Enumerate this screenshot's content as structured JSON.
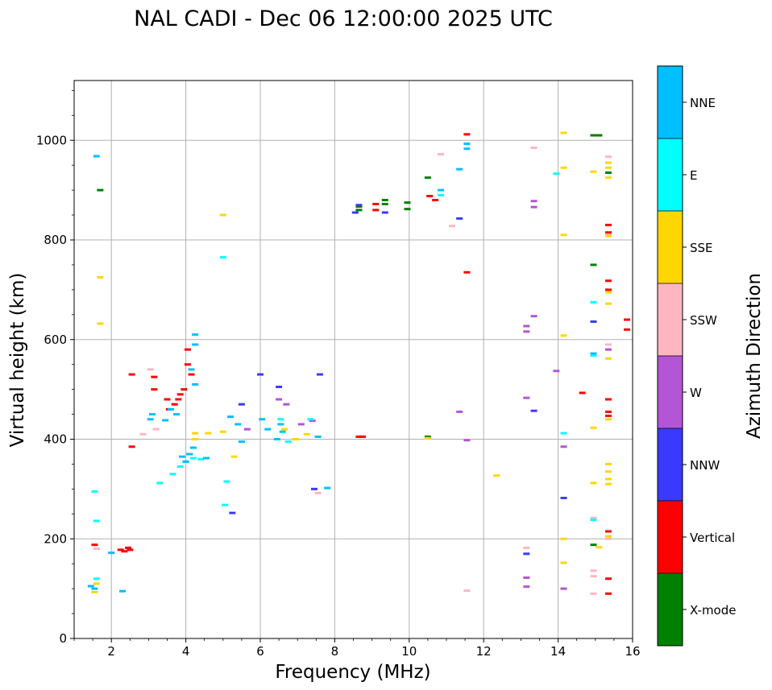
{
  "chart_data": {
    "type": "scatter",
    "title": "NAL CADI - Dec 06 12:00:00 2025 UTC",
    "xlabel": "Frequency (MHz)",
    "ylabel": "Virtual height (km)",
    "xlim": [
      1,
      16
    ],
    "ylim": [
      0,
      1120
    ],
    "xticks": [
      2,
      4,
      6,
      8,
      10,
      12,
      14,
      16
    ],
    "yticks": [
      0,
      200,
      400,
      600,
      800,
      1000
    ],
    "grid": true,
    "colorbar": {
      "label": "Azimuth Direction",
      "categories": [
        {
          "name": "X-mode",
          "color": "#008000"
        },
        {
          "name": "Vertical",
          "color": "#ff0000"
        },
        {
          "name": "NNW",
          "color": "#3a3aff"
        },
        {
          "name": "W",
          "color": "#b455d6"
        },
        {
          "name": "SSW",
          "color": "#ffb6c1"
        },
        {
          "name": "SSE",
          "color": "#ffd700"
        },
        {
          "name": "E",
          "color": "#00ffff"
        },
        {
          "name": "NNE",
          "color": "#00bfff"
        }
      ]
    },
    "series": [
      {
        "name": "X-mode",
        "points": [
          [
            8.65,
            867
          ],
          [
            8.65,
            860
          ],
          [
            9.35,
            880
          ],
          [
            9.35,
            872
          ],
          [
            9.95,
            875
          ],
          [
            9.95,
            862
          ],
          [
            10.5,
            925
          ],
          [
            10.5,
            405
          ],
          [
            14.95,
            1010
          ],
          [
            15.1,
            1010
          ],
          [
            14.95,
            750
          ],
          [
            14.95,
            188
          ],
          [
            15.35,
            935
          ],
          [
            1.7,
            900
          ]
        ]
      },
      {
        "name": "Vertical",
        "points": [
          [
            1.55,
            188
          ],
          [
            2.25,
            178
          ],
          [
            2.35,
            175
          ],
          [
            2.45,
            182
          ],
          [
            2.5,
            178
          ],
          [
            2.55,
            530
          ],
          [
            2.55,
            385
          ],
          [
            3.15,
            525
          ],
          [
            3.15,
            500
          ],
          [
            3.5,
            480
          ],
          [
            3.55,
            460
          ],
          [
            3.7,
            470
          ],
          [
            3.8,
            480
          ],
          [
            3.85,
            490
          ],
          [
            3.95,
            500
          ],
          [
            4.05,
            580
          ],
          [
            4.05,
            550
          ],
          [
            4.15,
            530
          ],
          [
            8.65,
            405
          ],
          [
            8.75,
            405
          ],
          [
            9.1,
            872
          ],
          [
            9.1,
            860
          ],
          [
            10.55,
            888
          ],
          [
            10.7,
            880
          ],
          [
            11.55,
            735
          ],
          [
            11.55,
            1012
          ],
          [
            14.65,
            493
          ],
          [
            15.35,
            830
          ],
          [
            15.35,
            815
          ],
          [
            15.35,
            718
          ],
          [
            15.35,
            700
          ],
          [
            15.35,
            480
          ],
          [
            15.35,
            455
          ],
          [
            15.35,
            447
          ],
          [
            15.35,
            215
          ],
          [
            15.35,
            120
          ],
          [
            15.35,
            90
          ],
          [
            15.85,
            640
          ],
          [
            15.85,
            620
          ]
        ]
      },
      {
        "name": "NNW",
        "points": [
          [
            8.55,
            855
          ],
          [
            8.65,
            870
          ],
          [
            9.35,
            855
          ],
          [
            11.35,
            843
          ],
          [
            13.15,
            170
          ],
          [
            13.35,
            457
          ],
          [
            14.15,
            282
          ],
          [
            14.95,
            636
          ],
          [
            6.0,
            530
          ],
          [
            6.5,
            505
          ],
          [
            5.5,
            470
          ],
          [
            7.6,
            530
          ],
          [
            7.45,
            300
          ],
          [
            5.25,
            252
          ]
        ]
      },
      {
        "name": "W",
        "points": [
          [
            13.35,
            878
          ],
          [
            13.35,
            866
          ],
          [
            13.35,
            647
          ],
          [
            13.15,
            627
          ],
          [
            13.15,
            616
          ],
          [
            13.15,
            483
          ],
          [
            13.15,
            122
          ],
          [
            13.15,
            104
          ],
          [
            13.95,
            537
          ],
          [
            14.15,
            385
          ],
          [
            14.15,
            100
          ],
          [
            15.35,
            580
          ],
          [
            11.35,
            455
          ],
          [
            11.55,
            398
          ],
          [
            6.5,
            480
          ],
          [
            6.7,
            470
          ],
          [
            7.1,
            430
          ],
          [
            7.4,
            437
          ],
          [
            5.65,
            420
          ]
        ]
      },
      {
        "name": "SSW",
        "points": [
          [
            13.35,
            985
          ],
          [
            15.35,
            967
          ],
          [
            15.35,
            590
          ],
          [
            14.95,
            242
          ],
          [
            14.95,
            136
          ],
          [
            14.95,
            125
          ],
          [
            14.95,
            90
          ],
          [
            15.35,
            810
          ],
          [
            11.15,
            828
          ],
          [
            10.85,
            972
          ],
          [
            3.05,
            540
          ],
          [
            3.2,
            420
          ],
          [
            2.85,
            410
          ],
          [
            1.6,
            180
          ],
          [
            7.55,
            292
          ],
          [
            11.55,
            96
          ],
          [
            13.15,
            182
          ],
          [
            15.35,
            200
          ]
        ]
      },
      {
        "name": "SSE",
        "points": [
          [
            14.15,
            1015
          ],
          [
            14.15,
            945
          ],
          [
            14.15,
            810
          ],
          [
            14.15,
            608
          ],
          [
            14.15,
            200
          ],
          [
            14.15,
            152
          ],
          [
            14.95,
            937
          ],
          [
            14.95,
            423
          ],
          [
            14.95,
            312
          ],
          [
            15.35,
            955
          ],
          [
            15.35,
            945
          ],
          [
            15.35,
            925
          ],
          [
            15.35,
            808
          ],
          [
            15.35,
            695
          ],
          [
            15.35,
            672
          ],
          [
            15.35,
            562
          ],
          [
            15.35,
            440
          ],
          [
            15.35,
            350
          ],
          [
            15.35,
            335
          ],
          [
            15.35,
            320
          ],
          [
            15.35,
            310
          ],
          [
            15.35,
            205
          ],
          [
            12.35,
            327
          ],
          [
            4.25,
            412
          ],
          [
            4.25,
            400
          ],
          [
            4.6,
            412
          ],
          [
            5.0,
            415
          ],
          [
            5.3,
            365
          ],
          [
            6.65,
            420
          ],
          [
            6.95,
            400
          ],
          [
            7.25,
            410
          ],
          [
            1.6,
            110
          ],
          [
            1.55,
            93
          ],
          [
            5.0,
            850
          ],
          [
            1.7,
            725
          ],
          [
            1.7,
            632
          ],
          [
            10.5,
            402
          ],
          [
            15.1,
            183
          ]
        ]
      },
      {
        "name": "E",
        "points": [
          [
            10.85,
            890
          ],
          [
            13.95,
            933
          ],
          [
            14.15,
            412
          ],
          [
            14.95,
            675
          ],
          [
            14.95,
            568
          ],
          [
            14.95,
            238
          ],
          [
            3.3,
            312
          ],
          [
            3.65,
            330
          ],
          [
            3.85,
            345
          ],
          [
            4.0,
            355
          ],
          [
            4.2,
            362
          ],
          [
            4.4,
            360
          ],
          [
            5.0,
            765
          ],
          [
            5.1,
            315
          ],
          [
            5.05,
            268
          ],
          [
            1.55,
            295
          ],
          [
            1.6,
            236
          ],
          [
            1.6,
            120
          ],
          [
            6.55,
            440
          ],
          [
            6.75,
            395
          ],
          [
            7.35,
            440
          ]
        ]
      },
      {
        "name": "NNE",
        "points": [
          [
            10.85,
            900
          ],
          [
            11.35,
            942
          ],
          [
            11.55,
            993
          ],
          [
            11.55,
            983
          ],
          [
            14.95,
            572
          ],
          [
            4.25,
            610
          ],
          [
            4.25,
            590
          ],
          [
            4.15,
            540
          ],
          [
            4.25,
            510
          ],
          [
            3.75,
            450
          ],
          [
            3.6,
            460
          ],
          [
            3.05,
            440
          ],
          [
            3.1,
            450
          ],
          [
            3.45,
            438
          ],
          [
            4.2,
            383
          ],
          [
            4.0,
            355
          ],
          [
            3.9,
            365
          ],
          [
            4.1,
            370
          ],
          [
            4.55,
            362
          ],
          [
            5.2,
            445
          ],
          [
            5.4,
            430
          ],
          [
            5.5,
            395
          ],
          [
            6.05,
            440
          ],
          [
            6.2,
            420
          ],
          [
            6.45,
            400
          ],
          [
            6.55,
            430
          ],
          [
            6.6,
            415
          ],
          [
            7.55,
            405
          ],
          [
            7.8,
            302
          ],
          [
            1.6,
            968
          ],
          [
            2.3,
            95
          ],
          [
            1.45,
            105
          ],
          [
            1.55,
            100
          ],
          [
            2.0,
            172
          ]
        ]
      }
    ]
  }
}
